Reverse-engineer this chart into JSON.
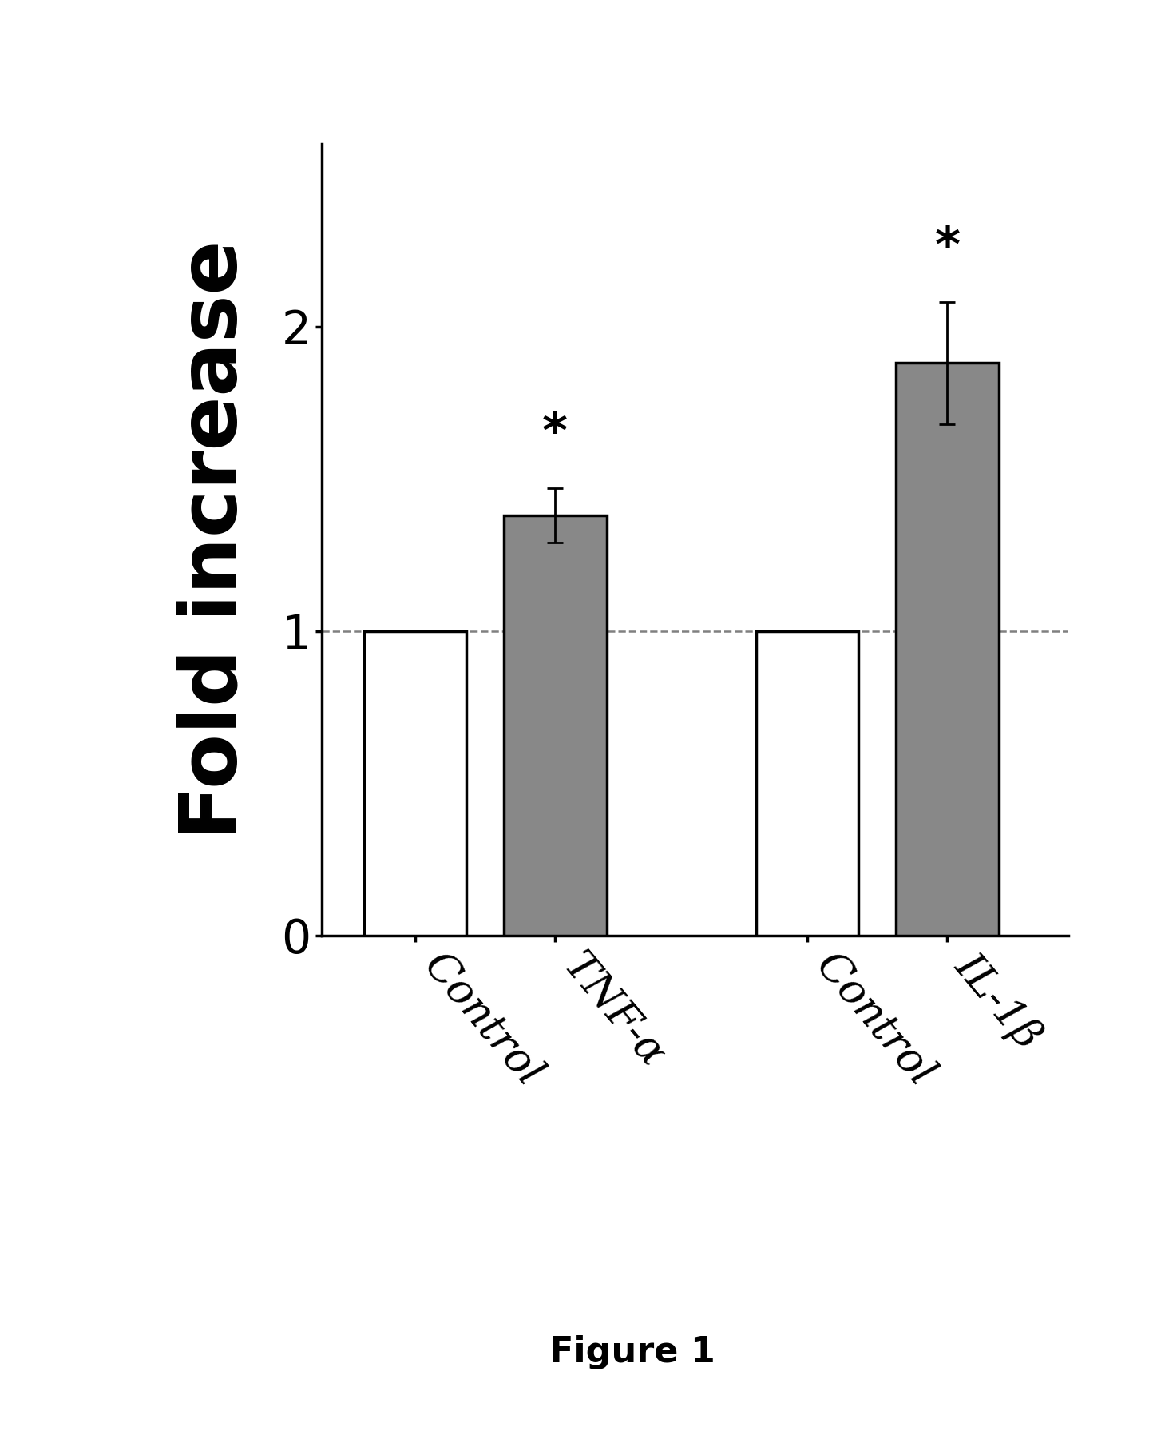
{
  "categories": [
    "Control",
    "TNF-α",
    "Control",
    "IL-1β"
  ],
  "values": [
    1.0,
    1.38,
    1.0,
    1.88
  ],
  "errors": [
    0.0,
    0.09,
    0.0,
    0.2
  ],
  "bar_colors": [
    "#ffffff",
    "#888888",
    "#ffffff",
    "#888888"
  ],
  "bar_edgecolor": "#000000",
  "bar_width": 0.55,
  "group_positions": [
    1.0,
    1.75,
    3.1,
    3.85
  ],
  "ylabel": "Fold increase",
  "ylabel_fontsize": 72,
  "tick_fontsize": 42,
  "yticks": [
    0,
    1.0,
    2.0
  ],
  "ylim": [
    0,
    2.6
  ],
  "xlim": [
    0.5,
    4.5
  ],
  "dashed_line_y": 1.0,
  "significance_labels": [
    null,
    "*",
    null,
    "*"
  ],
  "sig_fontsize": 44,
  "figure_label": "Figure 1",
  "figure_label_fontsize": 32,
  "background_color": "#ffffff",
  "linewidth": 2.5,
  "capsize": 7,
  "elinewidth": 2.0,
  "xtick_rotation": -50,
  "xtick_fontsize": 38
}
